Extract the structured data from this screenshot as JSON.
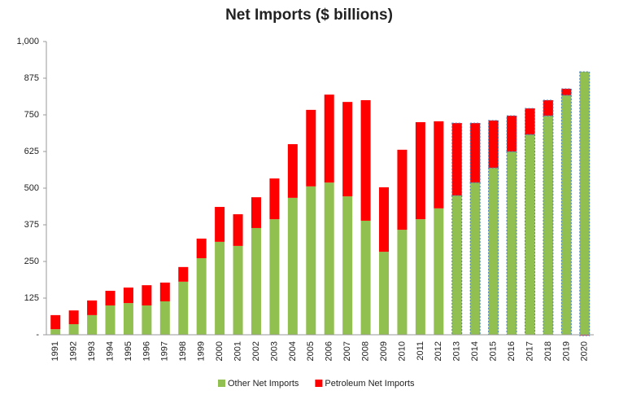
{
  "chart_data": {
    "type": "stacked_bar",
    "title": "Net Imports ($ billions)",
    "categories": [
      "1991",
      "1992",
      "1993",
      "1994",
      "1995",
      "1996",
      "1997",
      "1998",
      "1999",
      "2000",
      "2001",
      "2002",
      "2003",
      "2004",
      "2005",
      "2006",
      "2007",
      "2008",
      "2009",
      "2010",
      "2011",
      "2012",
      "2013",
      "2014",
      "2015",
      "2016",
      "2017",
      "2018",
      "2019",
      "2020"
    ],
    "series": [
      {
        "name": "Other Net Imports",
        "color": "#92c050",
        "values": [
          19,
          36,
          67,
          100,
          108,
          100,
          114,
          181,
          261,
          317,
          303,
          364,
          394,
          467,
          506,
          519,
          472,
          389,
          283,
          358,
          394,
          431,
          475,
          519,
          569,
          625,
          683,
          747,
          817,
          897
        ]
      },
      {
        "name": "Petroleum Net Imports",
        "color": "#ff0000",
        "values": [
          48,
          47,
          50,
          50,
          53,
          69,
          64,
          50,
          67,
          119,
          108,
          105,
          139,
          183,
          261,
          300,
          322,
          411,
          220,
          273,
          331,
          297,
          247,
          203,
          162,
          122,
          89,
          53,
          22,
          -3
        ]
      }
    ],
    "projection_from": "2013",
    "ylim": [
      0,
      1000
    ],
    "yticks": [
      {
        "value": 0,
        "label": "-"
      },
      125,
      250,
      375,
      500,
      625,
      750,
      875,
      {
        "value": 1000,
        "label": "1,000"
      }
    ],
    "legend": "bottom"
  }
}
